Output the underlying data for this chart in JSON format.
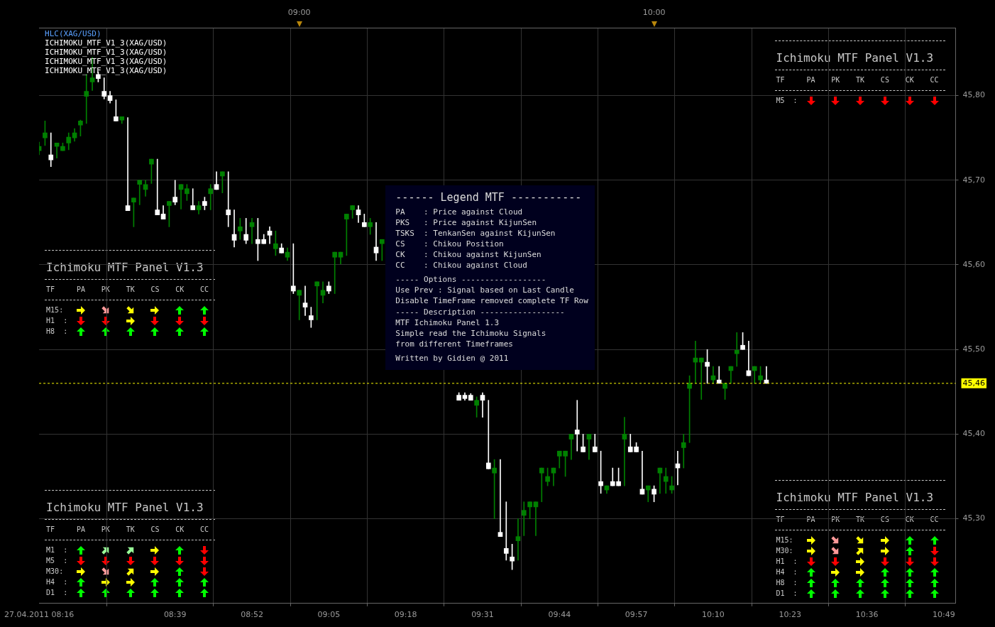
{
  "chart_data": {
    "type": "candlestick",
    "x": [
      "2011-04-27T08:16",
      "2011-04-27T08:17",
      "2011-04-27T08:18",
      "2011-04-27T08:19",
      "2011-04-27T08:20",
      "2011-04-27T08:21",
      "2011-04-27T08:22",
      "2011-04-27T08:23",
      "2011-04-27T08:24",
      "2011-04-27T08:25",
      "2011-04-27T08:26",
      "2011-04-27T08:27",
      "2011-04-27T08:28",
      "2011-04-27T08:29",
      "2011-04-27T08:30",
      "2011-04-27T08:31",
      "2011-04-27T08:32",
      "2011-04-27T08:33",
      "2011-04-27T08:34",
      "2011-04-27T08:35",
      "2011-04-27T08:36",
      "2011-04-27T08:37",
      "2011-04-27T08:38",
      "2011-04-27T08:39",
      "2011-04-27T08:40",
      "2011-04-27T08:41",
      "2011-04-27T08:42",
      "2011-04-27T08:43",
      "2011-04-27T08:44",
      "2011-04-27T08:45",
      "2011-04-27T08:46",
      "2011-04-27T08:47",
      "2011-04-27T08:48",
      "2011-04-27T08:49",
      "2011-04-27T08:50",
      "2011-04-27T08:51",
      "2011-04-27T08:52",
      "2011-04-27T08:53",
      "2011-04-27T08:54",
      "2011-04-27T08:55",
      "2011-04-27T08:56",
      "2011-04-27T08:57",
      "2011-04-27T08:58",
      "2011-04-27T08:59",
      "2011-04-27T09:00",
      "2011-04-27T09:01",
      "2011-04-27T09:02",
      "2011-04-27T09:03",
      "2011-04-27T09:04",
      "2011-04-27T09:05",
      "2011-04-27T09:06",
      "2011-04-27T09:07",
      "2011-04-27T09:08",
      "2011-04-27T09:09",
      "2011-04-27T09:10",
      "2011-04-27T09:11",
      "2011-04-27T09:12",
      "2011-04-27T09:13",
      "2011-04-27T09:14",
      "2011-04-27T09:27",
      "2011-04-27T09:28",
      "2011-04-27T09:29",
      "2011-04-27T09:30",
      "2011-04-27T09:31",
      "2011-04-27T09:32",
      "2011-04-27T09:33",
      "2011-04-27T09:34",
      "2011-04-27T09:35",
      "2011-04-27T09:36",
      "2011-04-27T09:37",
      "2011-04-27T09:38",
      "2011-04-27T09:39",
      "2011-04-27T09:40",
      "2011-04-27T09:41",
      "2011-04-27T09:42",
      "2011-04-27T09:43",
      "2011-04-27T09:44",
      "2011-04-27T09:45",
      "2011-04-27T09:46",
      "2011-04-27T09:47",
      "2011-04-27T09:48",
      "2011-04-27T09:49",
      "2011-04-27T09:50",
      "2011-04-27T09:51",
      "2011-04-27T09:52",
      "2011-04-27T09:53",
      "2011-04-27T09:54",
      "2011-04-27T09:55",
      "2011-04-27T09:56",
      "2011-04-27T09:57",
      "2011-04-27T09:58",
      "2011-04-27T09:59",
      "2011-04-27T10:00",
      "2011-04-27T10:01",
      "2011-04-27T10:02",
      "2011-04-27T10:03",
      "2011-04-27T10:04",
      "2011-04-27T10:05",
      "2011-04-27T10:06",
      "2011-04-27T10:07",
      "2011-04-27T10:08",
      "2011-04-27T10:09",
      "2011-04-27T10:10",
      "2011-04-27T10:11",
      "2011-04-27T10:12",
      "2011-04-27T10:13",
      "2011-04-27T10:14",
      "2011-04-27T10:15",
      "2011-04-27T10:16",
      "2011-04-27T10:17",
      "2011-04-27T10:18",
      "2011-04-27T10:19"
    ],
    "ohlc": [
      [
        45.735,
        45.745,
        45.73,
        45.74
      ],
      [
        45.75,
        45.77,
        45.741,
        45.756
      ],
      [
        45.73,
        45.756,
        45.716,
        45.724
      ],
      [
        45.74,
        45.744,
        45.726,
        45.744
      ],
      [
        45.735,
        45.744,
        45.735,
        45.74
      ],
      [
        45.744,
        45.756,
        45.736,
        45.751
      ],
      [
        45.75,
        45.761,
        45.746,
        45.756
      ],
      [
        45.765,
        45.771,
        45.752,
        45.77
      ],
      [
        45.799,
        45.825,
        45.767,
        45.805
      ],
      [
        45.816,
        45.845,
        45.806,
        45.821
      ],
      [
        45.825,
        45.828,
        45.816,
        45.82
      ],
      [
        45.805,
        45.821,
        45.796,
        45.799
      ],
      [
        45.8,
        45.805,
        45.791,
        45.794
      ],
      [
        45.775,
        45.795,
        45.77,
        45.77
      ],
      [
        45.771,
        45.775,
        45.767,
        45.775
      ],
      [
        45.67,
        45.774,
        45.664,
        45.664
      ],
      [
        45.674,
        45.679,
        45.645,
        45.679
      ],
      [
        45.695,
        45.7,
        45.671,
        45.7
      ],
      [
        45.689,
        45.7,
        45.681,
        45.695
      ],
      [
        45.719,
        45.725,
        45.696,
        45.725
      ],
      [
        45.665,
        45.725,
        45.659,
        45.659
      ],
      [
        45.66,
        45.67,
        45.654,
        45.654
      ],
      [
        45.67,
        45.675,
        45.645,
        45.675
      ],
      [
        45.68,
        45.7,
        45.671,
        45.674
      ],
      [
        45.689,
        45.695,
        45.666,
        45.695
      ],
      [
        45.684,
        45.695,
        45.676,
        45.69
      ],
      [
        45.67,
        45.69,
        45.665,
        45.665
      ],
      [
        45.665,
        45.675,
        45.66,
        45.67
      ],
      [
        45.675,
        45.68,
        45.665,
        45.67
      ],
      [
        45.684,
        45.695,
        45.665,
        45.69
      ],
      [
        45.695,
        45.71,
        45.689,
        45.689
      ],
      [
        45.705,
        45.71,
        45.685,
        45.71
      ],
      [
        45.665,
        45.71,
        45.645,
        45.659
      ],
      [
        45.636,
        45.665,
        45.621,
        45.629
      ],
      [
        45.64,
        45.655,
        45.63,
        45.645
      ],
      [
        45.636,
        45.655,
        45.625,
        45.629
      ],
      [
        45.645,
        45.655,
        45.625,
        45.65
      ],
      [
        45.63,
        45.655,
        45.605,
        45.625
      ],
      [
        45.63,
        45.636,
        45.625,
        45.625
      ],
      [
        45.64,
        45.645,
        45.625,
        45.635
      ],
      [
        45.619,
        45.64,
        45.611,
        45.625
      ],
      [
        45.62,
        45.625,
        45.614,
        45.614
      ],
      [
        45.609,
        45.62,
        45.605,
        45.615
      ],
      [
        45.575,
        45.625,
        45.566,
        45.569
      ],
      [
        45.564,
        45.57,
        45.535,
        45.57
      ],
      [
        45.555,
        45.575,
        45.54,
        45.55
      ],
      [
        45.54,
        45.55,
        45.526,
        45.535
      ],
      [
        45.575,
        45.58,
        45.535,
        45.58
      ],
      [
        45.564,
        45.58,
        45.555,
        45.57
      ],
      [
        45.575,
        45.58,
        45.566,
        45.569
      ],
      [
        45.609,
        45.615,
        45.566,
        45.615
      ],
      [
        45.609,
        45.615,
        45.601,
        45.615
      ],
      [
        45.654,
        45.66,
        45.611,
        45.66
      ],
      [
        45.665,
        45.67,
        45.655,
        45.67
      ],
      [
        45.665,
        45.67,
        45.65,
        45.659
      ],
      [
        45.65,
        45.66,
        45.645,
        45.645
      ],
      [
        45.645,
        45.655,
        45.636,
        45.65
      ],
      [
        45.621,
        45.65,
        45.605,
        45.614
      ],
      [
        45.625,
        45.63,
        45.605,
        45.63
      ],
      [
        45.446,
        45.449,
        45.44,
        45.44
      ],
      [
        45.446,
        45.449,
        45.44,
        45.442
      ],
      [
        45.446,
        45.448,
        45.44,
        45.44
      ],
      [
        45.434,
        45.444,
        45.42,
        45.44
      ],
      [
        45.446,
        45.449,
        45.42,
        45.44
      ],
      [
        45.366,
        45.44,
        45.359,
        45.359
      ],
      [
        45.354,
        45.37,
        45.3,
        45.36
      ],
      [
        45.284,
        45.37,
        45.279,
        45.279
      ],
      [
        45.265,
        45.32,
        45.251,
        45.259
      ],
      [
        45.255,
        45.27,
        45.24,
        45.25
      ],
      [
        45.274,
        45.3,
        45.251,
        45.279
      ],
      [
        45.304,
        45.32,
        45.28,
        45.31
      ],
      [
        45.314,
        45.32,
        45.3,
        45.32
      ],
      [
        45.314,
        45.32,
        45.28,
        45.32
      ],
      [
        45.354,
        45.36,
        45.32,
        45.36
      ],
      [
        45.344,
        45.36,
        45.339,
        45.35
      ],
      [
        45.354,
        45.36,
        45.339,
        45.36
      ],
      [
        45.374,
        45.38,
        45.36,
        45.38
      ],
      [
        45.374,
        45.38,
        45.35,
        45.38
      ],
      [
        45.394,
        45.4,
        45.37,
        45.4
      ],
      [
        45.405,
        45.44,
        45.38,
        45.4
      ],
      [
        45.385,
        45.4,
        45.379,
        45.379
      ],
      [
        45.394,
        45.4,
        45.37,
        45.4
      ],
      [
        45.385,
        45.4,
        45.379,
        45.379
      ],
      [
        45.344,
        45.38,
        45.33,
        45.339
      ],
      [
        45.334,
        45.339,
        45.33,
        45.339
      ],
      [
        45.344,
        45.36,
        45.339,
        45.339
      ],
      [
        45.344,
        45.36,
        45.339,
        45.339
      ],
      [
        45.394,
        45.42,
        45.339,
        45.4
      ],
      [
        45.385,
        45.4,
        45.379,
        45.379
      ],
      [
        45.385,
        45.39,
        45.379,
        45.379
      ],
      [
        45.335,
        45.38,
        45.329,
        45.329
      ],
      [
        45.334,
        45.339,
        45.32,
        45.339
      ],
      [
        45.335,
        45.339,
        45.32,
        45.329
      ],
      [
        45.354,
        45.36,
        45.33,
        45.36
      ],
      [
        45.344,
        45.36,
        45.33,
        45.35
      ],
      [
        45.334,
        45.35,
        45.33,
        45.339
      ],
      [
        45.365,
        45.38,
        45.34,
        45.36
      ],
      [
        45.384,
        45.4,
        45.36,
        45.39
      ],
      [
        45.454,
        45.469,
        45.39,
        45.46
      ],
      [
        45.485,
        45.51,
        45.46,
        45.49
      ],
      [
        45.485,
        45.49,
        45.441,
        45.49
      ],
      [
        45.485,
        45.5,
        45.46,
        45.48
      ],
      [
        45.464,
        45.48,
        45.46,
        45.469
      ],
      [
        45.464,
        45.48,
        45.46,
        45.46
      ],
      [
        45.454,
        45.46,
        45.441,
        45.46
      ],
      [
        45.475,
        45.48,
        45.46,
        45.48
      ],
      [
        45.495,
        45.52,
        45.48,
        45.499
      ],
      [
        45.505,
        45.52,
        45.5,
        45.5
      ],
      [
        45.475,
        45.51,
        45.469,
        45.469
      ],
      [
        45.475,
        45.48,
        45.46,
        45.48
      ],
      [
        45.464,
        45.48,
        45.46,
        45.469
      ],
      [
        45.464,
        45.48,
        45.46,
        45.46
      ]
    ],
    "colors": [
      "#008000",
      "#008000",
      "#ffffff",
      "#008000",
      "#008000",
      "#008000",
      "#008000",
      "#008000",
      "#008000",
      "#008000",
      "#ffffff",
      "#ffffff",
      "#ffffff",
      "#ffffff",
      "#008000",
      "#ffffff",
      "#008000",
      "#008000",
      "#008000",
      "#008000",
      "#ffffff",
      "#ffffff",
      "#008000",
      "#ffffff",
      "#008000",
      "#008000",
      "#ffffff",
      "#008000",
      "#ffffff",
      "#008000",
      "#ffffff",
      "#008000",
      "#ffffff",
      "#ffffff",
      "#008000",
      "#ffffff",
      "#008000",
      "#ffffff",
      "#ffffff",
      "#ffffff",
      "#008000",
      "#ffffff",
      "#008000",
      "#ffffff",
      "#008000",
      "#ffffff",
      "#ffffff",
      "#008000",
      "#008000",
      "#ffffff",
      "#008000",
      "#008000",
      "#008000",
      "#008000",
      "#ffffff",
      "#ffffff",
      "#008000",
      "#ffffff",
      "#008000",
      "#ffffff",
      "#ffffff",
      "#ffffff",
      "#008000",
      "#ffffff",
      "#ffffff",
      "#008000",
      "#ffffff",
      "#ffffff",
      "#ffffff",
      "#008000",
      "#008000",
      "#008000",
      "#008000",
      "#008000",
      "#008000",
      "#008000",
      "#008000",
      "#008000",
      "#008000",
      "#ffffff",
      "#ffffff",
      "#008000",
      "#ffffff",
      "#ffffff",
      "#008000",
      "#ffffff",
      "#ffffff",
      "#008000",
      "#ffffff",
      "#ffffff",
      "#ffffff",
      "#008000",
      "#ffffff",
      "#008000",
      "#008000",
      "#008000",
      "#ffffff",
      "#008000",
      "#008000",
      "#008000",
      "#008000",
      "#ffffff",
      "#008000",
      "#ffffff",
      "#008000",
      "#008000",
      "#008000",
      "#ffffff",
      "#ffffff",
      "#008000",
      "#008000",
      "#ffffff"
    ],
    "xlim": [
      "2011-04-27T08:16",
      "2011-04-27T10:51"
    ],
    "xticks": [
      {
        "value": "2011-04-27T08:16",
        "label": "27.04.2011 08:16"
      },
      {
        "value": "2011-04-27T08:39",
        "label": "08:39"
      },
      {
        "value": "2011-04-27T08:52",
        "label": "08:52"
      },
      {
        "value": "2011-04-27T09:05",
        "label": "09:05"
      },
      {
        "value": "2011-04-27T09:18",
        "label": "09:18"
      },
      {
        "value": "2011-04-27T09:31",
        "label": "09:31"
      },
      {
        "value": "2011-04-27T09:44",
        "label": "09:44"
      },
      {
        "value": "2011-04-27T09:57",
        "label": "09:57"
      },
      {
        "value": "2011-04-27T10:10",
        "label": "10:10"
      },
      {
        "value": "2011-04-27T10:23",
        "label": "10:23"
      },
      {
        "value": "2011-04-27T10:36",
        "label": "10:36"
      },
      {
        "value": "2011-04-27T10:49",
        "label": "10:49"
      }
    ],
    "x2lim": [
      "2011-04-27T08:16",
      "2011-04-27T10:51"
    ],
    "x2ticks": [
      {
        "value": "2011-04-27T09:00",
        "label": "09:00"
      },
      {
        "value": "2011-04-27T10:00",
        "label": "10:00"
      }
    ],
    "ylim": [
      45.2,
      45.88
    ],
    "yticks": [
      {
        "value": 45.3,
        "label": "45,30"
      },
      {
        "value": 45.4,
        "label": "45,40"
      },
      {
        "value": 45.5,
        "label": "45,50"
      },
      {
        "value": 45.6,
        "label": "45,60"
      },
      {
        "value": 45.7,
        "label": "45,70"
      },
      {
        "value": 45.8,
        "label": "45,80"
      }
    ],
    "grid": true,
    "ref_lines": [
      {
        "axis": "y",
        "value": 45.46,
        "label": "45,46",
        "color": "#ffff00",
        "line_style": "dashed"
      }
    ],
    "annotations": [
      "HLC(XAG/USD)",
      "ICHIMOKU_MTF_V1_3(XAG/USD)",
      "ICHIMOKU_MTF_V1_3(XAG/USD)",
      "ICHIMOKU_MTF_V1_3(XAG/USD)",
      "ICHIMOKU_MTF_V1_3(XAG/USD)",
      "Ichimoku MTF Panel V1.3",
      "TF",
      "PA",
      "PK",
      "TK",
      "CS",
      "CK",
      "CC",
      "M15:",
      "H1  :",
      "H8  :",
      "Ichimoku MTF Panel V1.3",
      "TF",
      "PA",
      "PK",
      "TK",
      "CS",
      "CK",
      "CC",
      "M5  :",
      "Ichimoku MTF Panel V1.3",
      "TF",
      "PA",
      "PK",
      "TK",
      "CS",
      "CK",
      "CC",
      "M1  :",
      "M5  :",
      "M30:",
      "H4  :",
      "D1  :",
      "Ichimoku MTF Panel V1.3",
      "TF",
      "PA",
      "PK",
      "TK",
      "CS",
      "CK",
      "CC",
      "M15:",
      "M30:",
      "H1  :",
      "H4  :",
      "H8  :",
      "D1  :",
      "------ Legend MTF -----------",
      "PA    : Price against Cloud",
      "PKS   : Price against KijunSen",
      "TSKS  : TenkanSen against KijunSen",
      "CS    : Chikou Position",
      "CK    : Chikou against KijunSen",
      "CC    : Chikou against Cloud",
      "----- Options ------------------",
      "Use Prev : Signal based on Last Candle",
      "Disable TimeFrame removed complete TF Row",
      "----- Description ------------------",
      "MTF Ichimoku Panel 1.3",
      "Simple read the Ichimoku Signals",
      "from different Timeframes",
      "Written by Gidien @ 2011"
    ]
  }
}
